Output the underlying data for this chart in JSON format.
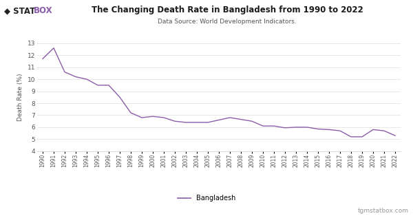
{
  "title": "The Changing Death Rate in Bangladesh from 1990 to 2022",
  "subtitle": "Data Source: World Development Indicators.",
  "ylabel": "Death Rate (%)",
  "watermark": "tgmstatbox.com",
  "legend_label": "Bangladesh",
  "line_color": "#8b5ca8",
  "bg_color": "#ffffff",
  "grid_color": "#dddddd",
  "ylim": [
    4,
    13
  ],
  "yticks": [
    4,
    5,
    6,
    7,
    8,
    9,
    10,
    11,
    12,
    13
  ],
  "years": [
    1990,
    1991,
    1992,
    1993,
    1994,
    1995,
    1996,
    1997,
    1998,
    1999,
    2000,
    2001,
    2002,
    2003,
    2004,
    2005,
    2006,
    2007,
    2008,
    2009,
    2010,
    2011,
    2012,
    2013,
    2014,
    2015,
    2016,
    2017,
    2018,
    2019,
    2020,
    2021,
    2022
  ],
  "values": [
    11.7,
    12.6,
    10.6,
    10.2,
    10.0,
    9.5,
    9.5,
    8.5,
    7.2,
    6.8,
    6.9,
    6.8,
    6.5,
    6.4,
    6.4,
    6.4,
    6.6,
    6.8,
    6.65,
    6.5,
    6.1,
    6.1,
    5.95,
    6.0,
    6.0,
    5.85,
    5.8,
    5.7,
    5.2,
    5.2,
    5.8,
    5.7,
    5.3
  ],
  "logo_stat": "◆ STAT",
  "logo_box": "BOX",
  "logo_color_stat": "#222222",
  "logo_color_box": "#8b5ca8"
}
